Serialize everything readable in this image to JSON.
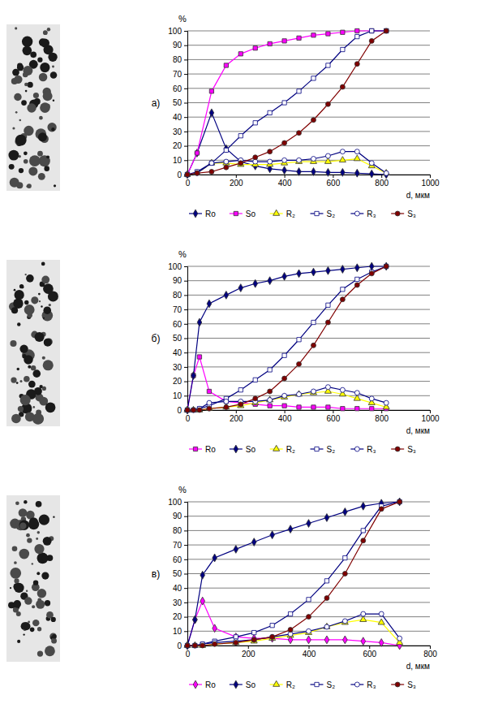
{
  "chart_data": [
    {
      "type": "line",
      "title": "а)",
      "x_label": "d, мкм",
      "y_label": "%",
      "x": [
        0,
        40,
        100,
        160,
        220,
        280,
        340,
        400,
        460,
        520,
        580,
        640,
        700,
        760,
        820
      ],
      "xlim": [
        0,
        1000
      ],
      "xticks": [
        0,
        200,
        400,
        600,
        800,
        1000
      ],
      "ylim": [
        0,
        100
      ],
      "yticks": [
        0,
        10,
        20,
        30,
        40,
        50,
        60,
        70,
        80,
        90,
        100
      ],
      "grid": true,
      "legend": "bottom",
      "series": [
        {
          "name": "Ro",
          "color": "#000080",
          "marker": "diamond",
          "values": [
            0,
            15,
            43,
            18,
            9,
            6,
            4,
            3,
            2,
            2,
            1.5,
            1.5,
            1,
            0.5,
            0
          ]
        },
        {
          "name": "So",
          "color": "#ff00ff",
          "marker": "square",
          "values": [
            0,
            15,
            58,
            76,
            84,
            88,
            91,
            93,
            95,
            97,
            98,
            99,
            100,
            100,
            100
          ]
        },
        {
          "name": "R₂",
          "color": "#ffff00",
          "marker": "triangle",
          "values": [
            0,
            1,
            8,
            8,
            7,
            7,
            7,
            8,
            9,
            9,
            9,
            10,
            11,
            6,
            1
          ]
        },
        {
          "name": "S₂",
          "color": "#000080",
          "marker": "open-square",
          "values": [
            0,
            2,
            8,
            17,
            27,
            36,
            43,
            50,
            58,
            67,
            76,
            87,
            96,
            100,
            100
          ]
        },
        {
          "name": "R₃",
          "color": "#000080",
          "marker": "open-circle",
          "values": [
            0,
            1,
            8,
            9,
            10,
            9,
            9,
            10,
            10,
            11,
            13,
            16,
            16,
            8,
            1
          ]
        },
        {
          "name": "S₃",
          "color": "#800000",
          "marker": "circle",
          "values": [
            0,
            1,
            2,
            5,
            8,
            12,
            16,
            22,
            29,
            38,
            49,
            61,
            77,
            93,
            100
          ]
        }
      ]
    },
    {
      "type": "line",
      "title": "б)",
      "x_label": "d, мкм",
      "y_label": "%",
      "x": [
        0,
        25,
        50,
        90,
        160,
        220,
        280,
        340,
        400,
        460,
        520,
        580,
        640,
        700,
        760,
        820
      ],
      "xlim": [
        0,
        1000
      ],
      "xticks": [
        0,
        200,
        400,
        600,
        800,
        1000
      ],
      "ylim": [
        0,
        100
      ],
      "yticks": [
        0,
        10,
        20,
        30,
        40,
        50,
        60,
        70,
        80,
        90,
        100
      ],
      "grid": true,
      "legend": "bottom",
      "series": [
        {
          "name": "Ro",
          "color": "#ff00ff",
          "marker": "square",
          "values": [
            0,
            24,
            37,
            13,
            6,
            5,
            4,
            3,
            3,
            2,
            2,
            2,
            1,
            1,
            1,
            1
          ]
        },
        {
          "name": "So",
          "color": "#000080",
          "marker": "diamond",
          "values": [
            0,
            24,
            61,
            74,
            80,
            85,
            88,
            90,
            93,
            95,
            96,
            97,
            98,
            99,
            100,
            100
          ]
        },
        {
          "name": "R₂",
          "color": "#ffff00",
          "marker": "triangle",
          "values": [
            0,
            0,
            0,
            1,
            2,
            3,
            5,
            7,
            9,
            11,
            12,
            13,
            11,
            8,
            5,
            2
          ]
        },
        {
          "name": "S₂",
          "color": "#000080",
          "marker": "open-square",
          "values": [
            0,
            0,
            1,
            3,
            8,
            14,
            21,
            28,
            38,
            49,
            61,
            73,
            84,
            91,
            96,
            100
          ]
        },
        {
          "name": "R₃",
          "color": "#000080",
          "marker": "open-circle",
          "values": [
            0,
            0,
            1,
            5,
            6,
            6,
            6,
            7,
            10,
            11,
            13,
            16,
            14,
            12,
            8,
            5
          ]
        },
        {
          "name": "S₃",
          "color": "#800000",
          "marker": "circle",
          "values": [
            0,
            0,
            0,
            1,
            2,
            4,
            8,
            13,
            22,
            32,
            45,
            61,
            77,
            87,
            95,
            100
          ]
        }
      ]
    },
    {
      "type": "line",
      "title": "в)",
      "x_label": "d, мкм",
      "y_label": "%",
      "x": [
        0,
        25,
        50,
        90,
        160,
        220,
        280,
        340,
        400,
        460,
        520,
        580,
        640,
        700
      ],
      "xlim": [
        0,
        800
      ],
      "xticks": [
        0,
        200,
        400,
        600,
        800
      ],
      "ylim": [
        0,
        100
      ],
      "yticks": [
        0,
        10,
        20,
        30,
        40,
        50,
        60,
        70,
        80,
        90,
        100
      ],
      "grid": true,
      "legend": "bottom",
      "series": [
        {
          "name": "Ro",
          "color": "#ff00ff",
          "marker": "diamond",
          "values": [
            0,
            18,
            31,
            12,
            6,
            5,
            5,
            4,
            4,
            4,
            4,
            3,
            2,
            0
          ]
        },
        {
          "name": "So",
          "color": "#000080",
          "marker": "diamond",
          "values": [
            0,
            18,
            49,
            61,
            67,
            72,
            77,
            81,
            85,
            89,
            93,
            97,
            99,
            100
          ]
        },
        {
          "name": "R₂",
          "color": "#ffff00",
          "marker": "triangle",
          "values": [
            0,
            0,
            0,
            1,
            2,
            3,
            5,
            7,
            9,
            13,
            16,
            18,
            16,
            2
          ]
        },
        {
          "name": "S₂",
          "color": "#000080",
          "marker": "open-square",
          "values": [
            0,
            0,
            1,
            3,
            6,
            9,
            14,
            22,
            32,
            45,
            61,
            80,
            97,
            100
          ]
        },
        {
          "name": "R₃",
          "color": "#000080",
          "marker": "open-circle",
          "values": [
            0,
            0,
            1,
            2,
            3,
            4,
            6,
            8,
            10,
            13,
            17,
            22,
            22,
            5
          ]
        },
        {
          "name": "S₃",
          "color": "#800000",
          "marker": "circle",
          "values": [
            0,
            0,
            0,
            1,
            2,
            4,
            6,
            11,
            20,
            33,
            50,
            73,
            95,
            100
          ]
        }
      ]
    }
  ]
}
